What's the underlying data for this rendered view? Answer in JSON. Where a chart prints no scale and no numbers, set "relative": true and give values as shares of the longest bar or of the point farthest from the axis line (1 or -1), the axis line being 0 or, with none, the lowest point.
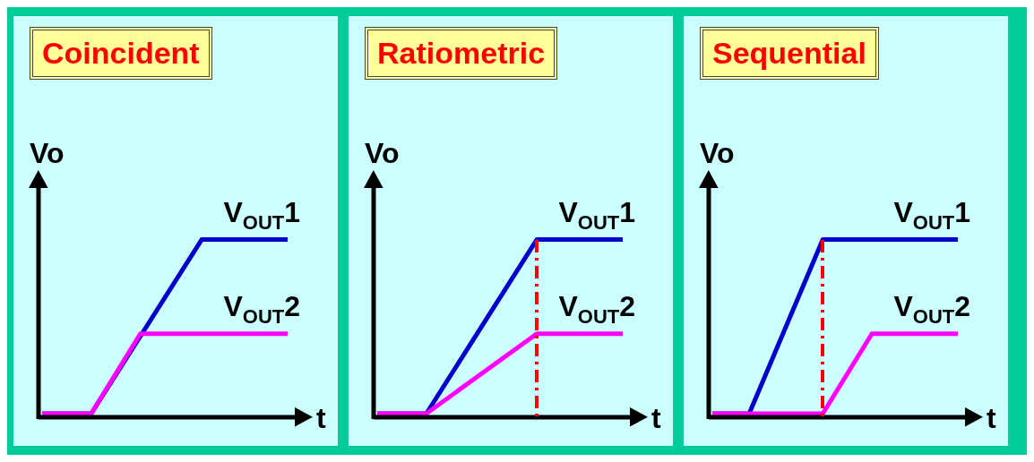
{
  "chart_data": [
    {
      "type": "line",
      "title": "Coincident",
      "xlabel": "t",
      "ylabel": "Vo",
      "relative": true,
      "categories": [
        null,
        null,
        null,
        null,
        null,
        null,
        null,
        null,
        null,
        null,
        null,
        null,
        null,
        null,
        null,
        null,
        null,
        null,
        null,
        null,
        null
      ],
      "tick_labels": false,
      "marker": "none",
      "series": [
        {
          "name": "V$_{OUT}$1",
          "color": "#0000cc",
          "values": [
            0.02,
            null,
            null,
            null,
            0.02,
            null,
            null,
            null,
            null,
            null,
            null,
            null,
            null,
            1,
            null,
            null,
            null,
            null,
            null,
            null,
            1
          ]
        },
        {
          "name": "V$_{OUT}$2",
          "color": "#ff00ff",
          "values": [
            0.02,
            null,
            null,
            null,
            0.02,
            null,
            null,
            null,
            0.47,
            null,
            null,
            null,
            null,
            null,
            null,
            null,
            null,
            null,
            null,
            null,
            0.47
          ]
        }
      ]
    },
    {
      "type": "line",
      "title": "Ratiometric",
      "xlabel": "t",
      "ylabel": "Vo",
      "relative": true,
      "categories": [
        null,
        null,
        null,
        null,
        null,
        null,
        null,
        null,
        null,
        null,
        null,
        null,
        null,
        null,
        null,
        null,
        null,
        null,
        null,
        null,
        null
      ],
      "tick_labels": false,
      "marker": "none",
      "series": [
        {
          "name": "V$_{OUT}$1",
          "color": "#0000cc",
          "values": [
            0.02,
            null,
            null,
            null,
            0.02,
            null,
            null,
            null,
            null,
            null,
            null,
            null,
            null,
            1,
            null,
            null,
            null,
            null,
            null,
            null,
            1
          ]
        },
        {
          "name": "V$_{OUT}$2",
          "color": "#ff00ff",
          "values": [
            0.02,
            null,
            null,
            null,
            0.02,
            null,
            null,
            null,
            null,
            null,
            null,
            null,
            null,
            0.47,
            null,
            null,
            null,
            null,
            null,
            null,
            0.47
          ]
        }
      ]
    },
    {
      "type": "line",
      "title": "Sequential",
      "xlabel": "t",
      "ylabel": "Vo",
      "relative": true,
      "categories": [
        null,
        null,
        null,
        null,
        null,
        null,
        null,
        null,
        null,
        null,
        null,
        null,
        null,
        null,
        null,
        null,
        null,
        null,
        null,
        null,
        null
      ],
      "tick_labels": false,
      "marker": "none",
      "series": [
        {
          "name": "V$_{OUT}$1",
          "color": "#0000cc",
          "values": [
            0.02,
            null,
            null,
            0.02,
            null,
            null,
            null,
            null,
            null,
            1,
            null,
            null,
            null,
            null,
            null,
            null,
            null,
            null,
            null,
            null,
            1
          ]
        },
        {
          "name": "V$_{OUT}$2",
          "color": "#ff00ff",
          "values": [
            0.02,
            null,
            null,
            null,
            null,
            null,
            null,
            null,
            null,
            0.02,
            null,
            null,
            null,
            0.47,
            null,
            null,
            null,
            null,
            null,
            null,
            0.47
          ]
        }
      ]
    }
  ]
}
